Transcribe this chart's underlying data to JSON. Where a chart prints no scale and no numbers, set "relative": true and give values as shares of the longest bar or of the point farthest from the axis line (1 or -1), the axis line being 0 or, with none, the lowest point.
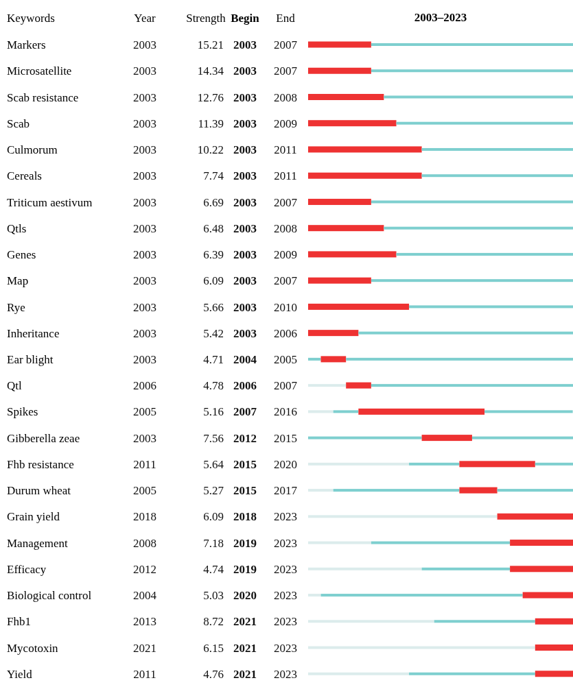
{
  "chart_data": [
    {
      "type": "heatmap",
      "ylabel": "Keywords",
      "data_labels": true,
      "categories": [
        "Year",
        "Strength",
        "Begin",
        "End"
      ],
      "y_categories": [
        "Markers",
        "Microsatellite",
        "Scab resistance",
        "Scab",
        "Culmorum",
        "Cereals",
        "Triticum aestivum",
        "Qtls",
        "Genes",
        "Map",
        "Rye",
        "Inheritance",
        "Ear blight",
        "Qtl",
        "Spikes",
        "Gibberella zeae",
        "Fhb resistance",
        "Durum wheat",
        "Grain yield",
        "Management",
        "Efficacy",
        "Biological control",
        "Fhb1",
        "Mycotoxin",
        "Yield"
      ],
      "cells": [
        [
          2003,
          15.21,
          2003,
          2007
        ],
        [
          2003,
          14.34,
          2003,
          2007
        ],
        [
          2003,
          12.76,
          2003,
          2008
        ],
        [
          2003,
          11.39,
          2003,
          2009
        ],
        [
          2003,
          10.22,
          2003,
          2011
        ],
        [
          2003,
          7.74,
          2003,
          2011
        ],
        [
          2003,
          6.69,
          2003,
          2007
        ],
        [
          2003,
          6.48,
          2003,
          2008
        ],
        [
          2003,
          6.39,
          2003,
          2009
        ],
        [
          2003,
          6.09,
          2003,
          2007
        ],
        [
          2003,
          5.66,
          2003,
          2010
        ],
        [
          2003,
          5.42,
          2003,
          2006
        ],
        [
          2003,
          4.71,
          2004,
          2005
        ],
        [
          2006,
          4.78,
          2006,
          2007
        ],
        [
          2005,
          5.16,
          2007,
          2016
        ],
        [
          2003,
          7.56,
          2012,
          2015
        ],
        [
          2011,
          5.64,
          2015,
          2020
        ],
        [
          2005,
          5.27,
          2015,
          2017
        ],
        [
          2018,
          6.09,
          2018,
          2023
        ],
        [
          2008,
          7.18,
          2019,
          2023
        ],
        [
          2012,
          4.74,
          2019,
          2023
        ],
        [
          2004,
          5.03,
          2020,
          2023
        ],
        [
          2013,
          8.72,
          2021,
          2023
        ],
        [
          2021,
          6.15,
          2021,
          2023
        ],
        [
          2011,
          4.76,
          2021,
          2023
        ]
      ]
    },
    {
      "type": "bar",
      "orientation": "horizontal",
      "stacked": true,
      "relative": true,
      "title": "2003–2023",
      "categories": [
        null,
        null,
        null,
        null,
        null,
        null,
        null,
        null,
        null,
        null,
        null,
        null,
        null,
        null,
        null,
        null,
        null,
        null,
        null,
        null,
        null,
        null,
        null,
        null,
        null
      ],
      "series": [
        {
          "color": "#dcecec",
          "values": [
            0,
            0,
            0,
            0,
            0,
            0,
            0,
            0,
            0,
            0,
            0,
            0,
            0,
            0.143,
            0.095,
            0,
            0.381,
            0.095,
            0.714,
            0.238,
            0.429,
            0.048,
            0.476,
            0.857,
            0.381
          ]
        },
        {
          "color": "#7ecfcf",
          "values": [
            0,
            0,
            0,
            0,
            0,
            0,
            0,
            0,
            0,
            0,
            0,
            0,
            0.048,
            0,
            0.095,
            0.429,
            0.19,
            0.476,
            0,
            0.524,
            0.333,
            0.762,
            0.381,
            0,
            0.476
          ]
        },
        {
          "color": "#ee3232",
          "values": [
            0.238,
            0.238,
            0.286,
            0.333,
            0.429,
            0.429,
            0.238,
            0.286,
            0.333,
            0.238,
            0.381,
            0.19,
            0.095,
            0.095,
            0.476,
            0.19,
            0.286,
            0.143,
            0.286,
            0.238,
            0.238,
            0.19,
            0.143,
            0.143,
            0.143
          ]
        },
        {
          "color": "#7ecfcf",
          "values": [
            0.762,
            0.762,
            0.714,
            0.667,
            0.571,
            0.571,
            0.762,
            0.714,
            0.667,
            0.762,
            0.619,
            0.81,
            0.857,
            0.762,
            0.333,
            0.381,
            0.143,
            0.286,
            0,
            0,
            0,
            0,
            0,
            0,
            0
          ]
        }
      ]
    }
  ]
}
